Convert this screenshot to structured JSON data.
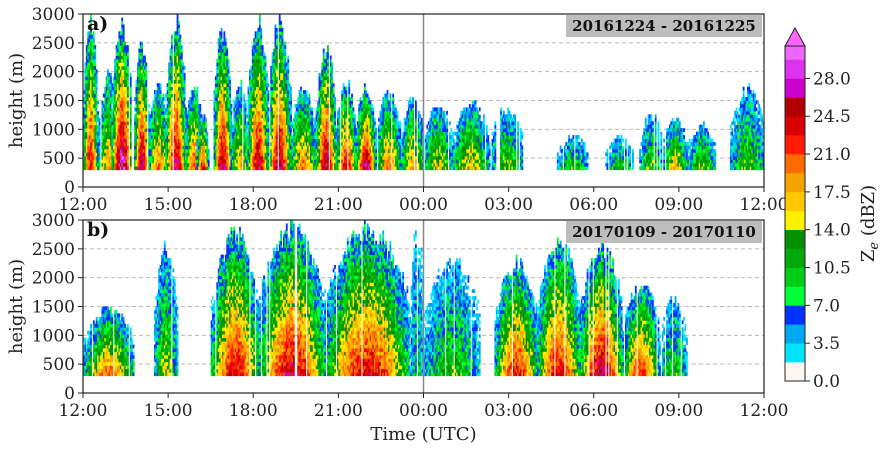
{
  "chart_data": [
    {
      "type": "heatmap",
      "panel_label": "a)",
      "date_range": "20161224 - 20161225",
      "ylabel": "height (m)",
      "xlabel": "",
      "ylim": [
        0,
        3000
      ],
      "yticks": [
        0,
        500,
        1000,
        1500,
        2000,
        2500,
        3000
      ],
      "xlim_hours": [
        0,
        24
      ],
      "xtick_labels": [
        "12:00",
        "15:00",
        "18:00",
        "21:00",
        "00:00",
        "03:00",
        "06:00",
        "09:00",
        "12:00"
      ],
      "midnight_marker": "00:00",
      "grid": "horizontal-dashed",
      "echo_columns": [
        {
          "t_start": 0.0,
          "t_end": 0.5,
          "base": 300,
          "top": 3000,
          "peak_dbz": 24
        },
        {
          "t_start": 0.5,
          "t_end": 1.3,
          "base": 300,
          "top": 2000,
          "peak_dbz": 18
        },
        {
          "t_start": 1.0,
          "t_end": 1.7,
          "base": 300,
          "top": 3000,
          "peak_dbz": 29
        },
        {
          "t_start": 1.8,
          "t_end": 2.3,
          "base": 300,
          "top": 2600,
          "peak_dbz": 27
        },
        {
          "t_start": 2.3,
          "t_end": 3.0,
          "base": 300,
          "top": 1800,
          "peak_dbz": 20
        },
        {
          "t_start": 2.9,
          "t_end": 3.6,
          "base": 300,
          "top": 3000,
          "peak_dbz": 26
        },
        {
          "t_start": 3.6,
          "t_end": 4.2,
          "base": 300,
          "top": 1800,
          "peak_dbz": 22
        },
        {
          "t_start": 4.0,
          "t_end": 4.4,
          "base": 300,
          "top": 1300,
          "peak_dbz": 24
        },
        {
          "t_start": 4.6,
          "t_end": 5.2,
          "base": 300,
          "top": 2900,
          "peak_dbz": 26
        },
        {
          "t_start": 5.2,
          "t_end": 5.8,
          "base": 300,
          "top": 1900,
          "peak_dbz": 18
        },
        {
          "t_start": 5.8,
          "t_end": 6.5,
          "base": 300,
          "top": 3000,
          "peak_dbz": 26
        },
        {
          "t_start": 6.5,
          "t_end": 7.3,
          "base": 300,
          "top": 3000,
          "peak_dbz": 26
        },
        {
          "t_start": 7.3,
          "t_end": 8.2,
          "base": 300,
          "top": 1800,
          "peak_dbz": 20
        },
        {
          "t_start": 8.2,
          "t_end": 8.9,
          "base": 300,
          "top": 2500,
          "peak_dbz": 27
        },
        {
          "t_start": 8.9,
          "t_end": 9.6,
          "base": 300,
          "top": 1900,
          "peak_dbz": 24
        },
        {
          "t_start": 9.6,
          "t_end": 10.3,
          "base": 300,
          "top": 1800,
          "peak_dbz": 27
        },
        {
          "t_start": 10.3,
          "t_end": 11.2,
          "base": 300,
          "top": 1700,
          "peak_dbz": 20
        },
        {
          "t_start": 11.2,
          "t_end": 12.0,
          "base": 300,
          "top": 1600,
          "peak_dbz": 18
        },
        {
          "t_start": 12.0,
          "t_end": 13.0,
          "base": 300,
          "top": 1500,
          "peak_dbz": 16
        },
        {
          "t_start": 13.0,
          "t_end": 14.3,
          "base": 300,
          "top": 1500,
          "peak_dbz": 17
        },
        {
          "t_start": 14.3,
          "t_end": 15.5,
          "base": 300,
          "top": 1400,
          "peak_dbz": 14
        },
        {
          "t_start": 16.7,
          "t_end": 17.8,
          "base": 300,
          "top": 900,
          "peak_dbz": 12
        },
        {
          "t_start": 18.4,
          "t_end": 19.4,
          "base": 300,
          "top": 900,
          "peak_dbz": 11
        },
        {
          "t_start": 19.6,
          "t_end": 20.4,
          "base": 300,
          "top": 1300,
          "peak_dbz": 13
        },
        {
          "t_start": 20.4,
          "t_end": 21.3,
          "base": 300,
          "top": 1200,
          "peak_dbz": 17
        },
        {
          "t_start": 21.3,
          "t_end": 22.3,
          "base": 300,
          "top": 1100,
          "peak_dbz": 14
        },
        {
          "t_start": 22.8,
          "t_end": 24.0,
          "base": 300,
          "top": 1800,
          "peak_dbz": 13
        }
      ]
    },
    {
      "type": "heatmap",
      "panel_label": "b)",
      "date_range": "20170109 - 20170110",
      "ylabel": "height (m)",
      "xlabel": "Time (UTC)",
      "ylim": [
        0,
        3000
      ],
      "yticks": [
        0,
        500,
        1000,
        1500,
        2000,
        2500,
        3000
      ],
      "xlim_hours": [
        0,
        24
      ],
      "xtick_labels": [
        "12:00",
        "15:00",
        "18:00",
        "21:00",
        "00:00",
        "03:00",
        "06:00",
        "09:00",
        "12:00"
      ],
      "midnight_marker": "00:00",
      "grid": "horizontal-dashed",
      "echo_columns": [
        {
          "t_start": 0.0,
          "t_end": 1.8,
          "base": 300,
          "top": 1500,
          "peak_dbz": 20
        },
        {
          "t_start": 2.5,
          "t_end": 3.3,
          "base": 300,
          "top": 2700,
          "peak_dbz": 15
        },
        {
          "t_start": 4.5,
          "t_end": 6.2,
          "base": 300,
          "top": 2900,
          "peak_dbz": 24
        },
        {
          "t_start": 6.2,
          "t_end": 8.5,
          "base": 300,
          "top": 3000,
          "peak_dbz": 25
        },
        {
          "t_start": 8.5,
          "t_end": 11.5,
          "base": 300,
          "top": 3000,
          "peak_dbz": 24
        },
        {
          "t_start": 11.5,
          "t_end": 12.0,
          "base": 300,
          "top": 3000,
          "peak_dbz": 9
        },
        {
          "t_start": 12.0,
          "t_end": 14.0,
          "base": 300,
          "top": 2400,
          "peak_dbz": 12
        },
        {
          "t_start": 14.5,
          "t_end": 16.0,
          "base": 300,
          "top": 2400,
          "peak_dbz": 23
        },
        {
          "t_start": 16.0,
          "t_end": 17.5,
          "base": 300,
          "top": 2800,
          "peak_dbz": 24
        },
        {
          "t_start": 17.5,
          "t_end": 19.0,
          "base": 300,
          "top": 2700,
          "peak_dbz": 26
        },
        {
          "t_start": 19.0,
          "t_end": 20.3,
          "base": 300,
          "top": 2000,
          "peak_dbz": 22
        },
        {
          "t_start": 20.3,
          "t_end": 21.3,
          "base": 300,
          "top": 1700,
          "peak_dbz": 12
        }
      ]
    }
  ],
  "colorbar": {
    "title": "Z",
    "title_subscript": "e",
    "title_units": " (dBZ)",
    "range": [
      0,
      31
    ],
    "tick_values": [
      0.0,
      3.5,
      7.0,
      10.5,
      14.0,
      17.5,
      21.0,
      24.5,
      28.0
    ],
    "tick_labels": [
      "0.0",
      "3.5",
      "7.0",
      "10.5",
      "14.0",
      "17.5",
      "21.0",
      "24.5",
      "28.0"
    ],
    "extend": "max",
    "colors": [
      {
        "from": 0.0,
        "to": 1.75,
        "color": "#fff6f4"
      },
      {
        "from": 1.75,
        "to": 3.5,
        "color": "#00e5ff"
      },
      {
        "from": 3.5,
        "to": 5.25,
        "color": "#00a8f0"
      },
      {
        "from": 5.25,
        "to": 7.0,
        "color": "#0032ff"
      },
      {
        "from": 7.0,
        "to": 8.75,
        "color": "#00ff34"
      },
      {
        "from": 8.75,
        "to": 10.5,
        "color": "#00cc1a"
      },
      {
        "from": 10.5,
        "to": 12.25,
        "color": "#00a80a"
      },
      {
        "from": 12.25,
        "to": 14.0,
        "color": "#009000"
      },
      {
        "from": 14.0,
        "to": 15.75,
        "color": "#fff000"
      },
      {
        "from": 15.75,
        "to": 17.5,
        "color": "#ffc800"
      },
      {
        "from": 17.5,
        "to": 19.25,
        "color": "#f5a300"
      },
      {
        "from": 19.25,
        "to": 21.0,
        "color": "#ff6a00"
      },
      {
        "from": 21.0,
        "to": 22.75,
        "color": "#ff1a00"
      },
      {
        "from": 22.75,
        "to": 24.5,
        "color": "#d80000"
      },
      {
        "from": 24.5,
        "to": 26.25,
        "color": "#b00000"
      },
      {
        "from": 26.25,
        "to": 28.0,
        "color": "#cc00cc"
      },
      {
        "from": 28.0,
        "to": 29.75,
        "color": "#dd33ee"
      },
      {
        "from": 29.75,
        "to": 31.0,
        "color": "#ee66ff"
      }
    ],
    "extend_color": "#ff66ff"
  }
}
